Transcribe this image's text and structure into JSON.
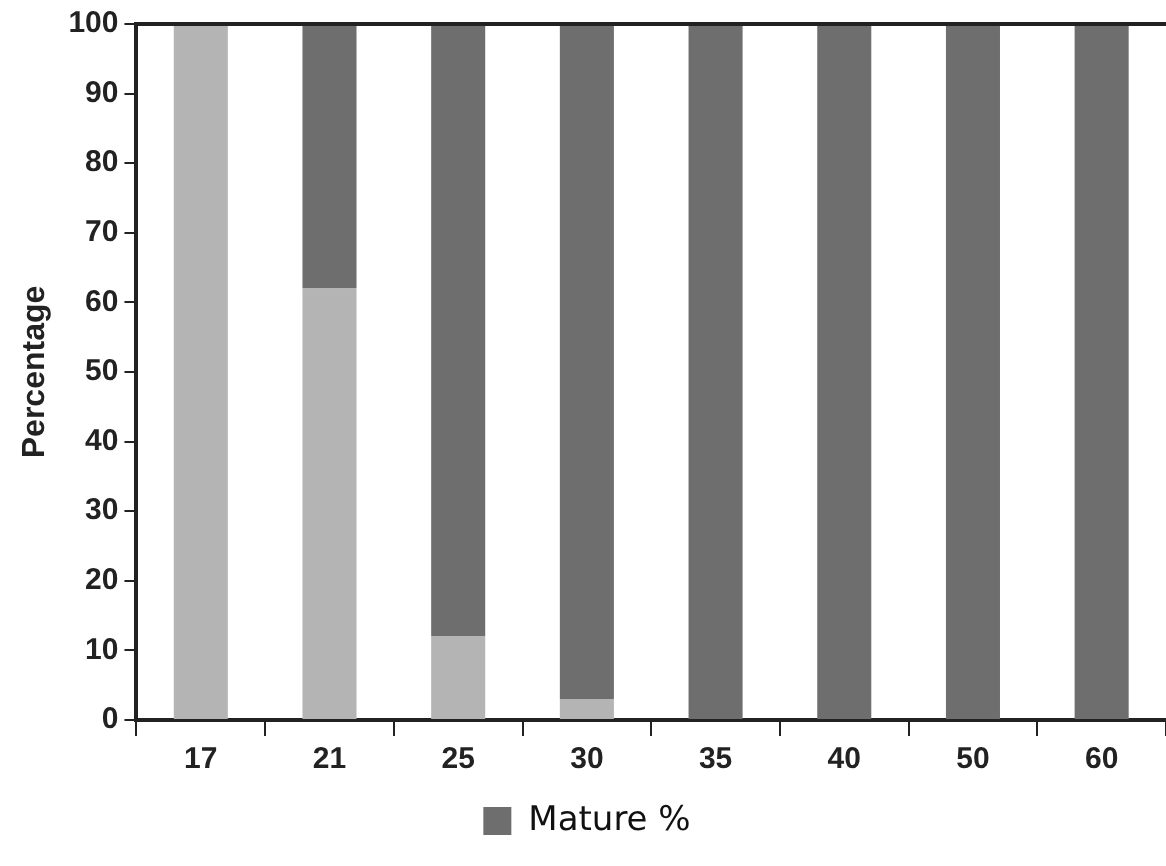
{
  "chart_data": {
    "type": "bar",
    "stacked": true,
    "ylabel": "Percentage",
    "categories": [
      "17",
      "21",
      "25",
      "30",
      "35",
      "40",
      "50",
      "60"
    ],
    "series": [
      {
        "color": "#b4b4b4",
        "values": [
          100,
          62,
          12,
          3,
          0,
          0,
          0,
          0
        ]
      },
      {
        "name": "Mature %",
        "color": "#6e6e6e",
        "values": [
          0,
          38,
          88,
          97,
          100,
          100,
          100,
          100
        ]
      }
    ],
    "ylim": [
      0,
      100
    ],
    "yticks": [
      0,
      10,
      20,
      30,
      40,
      50,
      60,
      70,
      80,
      90,
      100
    ],
    "grid": false,
    "legend": "bottom"
  }
}
